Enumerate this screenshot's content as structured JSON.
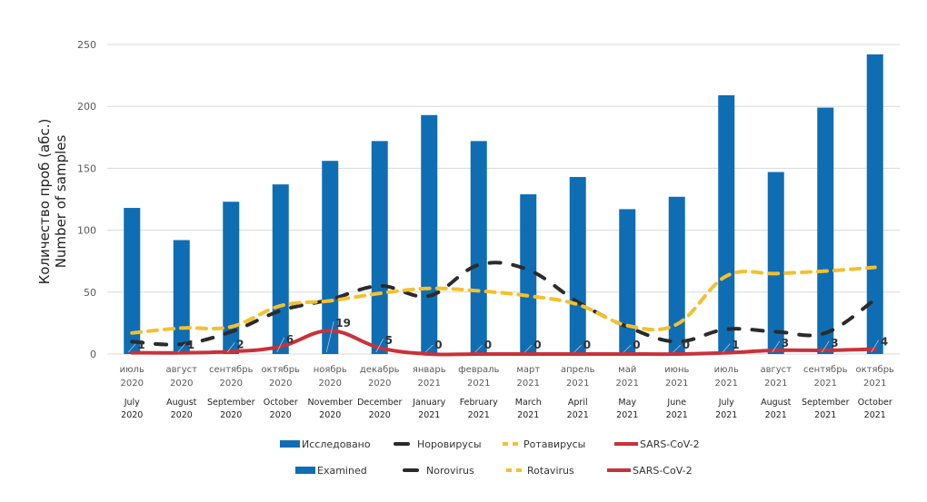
{
  "chart_data": {
    "type": "bar",
    "title": "",
    "ylabel_lines": [
      "Количество проб (абс.)",
      "Number of samples"
    ],
    "xlabel": "",
    "ylim": [
      0,
      250
    ],
    "yticks": [
      0,
      50,
      100,
      150,
      200,
      250
    ],
    "grid": true,
    "categories_ru": [
      [
        "июль",
        "2020"
      ],
      [
        "август",
        "2020"
      ],
      [
        "сентябрь",
        "2020"
      ],
      [
        "октябрь",
        "2020"
      ],
      [
        "ноябрь",
        "2020"
      ],
      [
        "декабрь",
        "2020"
      ],
      [
        "январь",
        "2021"
      ],
      [
        "февраль",
        "2021"
      ],
      [
        "март",
        "2021"
      ],
      [
        "апрель",
        "2021"
      ],
      [
        "май",
        "2021"
      ],
      [
        "июнь",
        "2021"
      ],
      [
        "июль",
        "2021"
      ],
      [
        "август",
        "2021"
      ],
      [
        "сентябрь",
        "2021"
      ],
      [
        "октябрь",
        "2021"
      ]
    ],
    "categories_en": [
      [
        "July",
        "2020"
      ],
      [
        "August",
        "2020"
      ],
      [
        "September",
        "2020"
      ],
      [
        "October",
        "2020"
      ],
      [
        "November",
        "2020"
      ],
      [
        "December",
        "2020"
      ],
      [
        "January",
        "2021"
      ],
      [
        "February",
        "2021"
      ],
      [
        "March",
        "2021"
      ],
      [
        "April",
        "2021"
      ],
      [
        "May",
        "2021"
      ],
      [
        "June",
        "2021"
      ],
      [
        "July",
        "2021"
      ],
      [
        "August",
        "2021"
      ],
      [
        "September",
        "2021"
      ],
      [
        "October",
        "2021"
      ]
    ],
    "series": [
      {
        "key": "examined",
        "name_ru": "Исследовано",
        "name": "Examined",
        "kind": "bar",
        "color": "#0F6DB3",
        "values": [
          118,
          92,
          123,
          137,
          156,
          172,
          193,
          172,
          129,
          143,
          117,
          127,
          209,
          147,
          199,
          242
        ]
      },
      {
        "key": "norovirus",
        "name_ru": "Норовирусы",
        "name": "Norovirus",
        "kind": "line-dashed",
        "color": "#2B2B2B",
        "values": [
          10,
          8,
          18,
          35,
          44,
          55,
          47,
          72,
          68,
          42,
          22,
          10,
          20,
          18,
          17,
          44
        ]
      },
      {
        "key": "rotavirus",
        "name_ru": "Ротавирусы",
        "name": "Rotavirus",
        "kind": "line-dashed",
        "color": "#F4C02E",
        "values": [
          17,
          21,
          22,
          39,
          43,
          49,
          53,
          51,
          47,
          40,
          23,
          24,
          63,
          65,
          67,
          70
        ]
      },
      {
        "key": "sars",
        "name_ru": "SARS-CoV-2",
        "name": "SARS-CoV-2",
        "kind": "line-solid",
        "color": "#C8323A",
        "values": [
          1,
          1,
          2,
          6,
          19,
          5,
          0,
          0,
          0,
          0,
          0,
          0,
          1,
          3,
          3,
          4
        ],
        "data_labels": [
          "1",
          "1",
          "2",
          "6",
          "19",
          "5",
          "0",
          "0",
          "0",
          "0",
          "0",
          "0",
          "1",
          "3",
          "3",
          "4"
        ]
      }
    ],
    "legend_position": "bottom",
    "legend_rows": [
      [
        "Исследовано",
        "Норовирусы",
        "Ротавирусы",
        "SARS-CoV-2"
      ],
      [
        "Examined",
        "Norovirus",
        "Rotavirus",
        "SARS-CoV-2"
      ]
    ]
  }
}
